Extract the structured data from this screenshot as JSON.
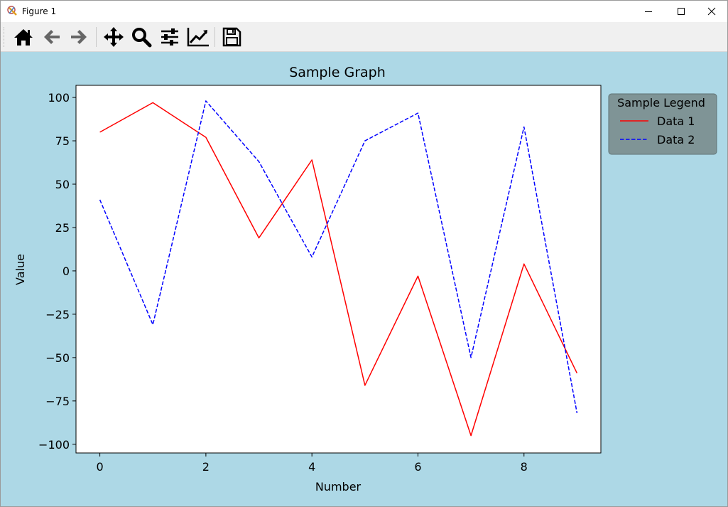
{
  "window": {
    "title": "Figure 1"
  },
  "toolbar": {
    "tools": [
      {
        "name": "home-icon",
        "label": "Home"
      },
      {
        "name": "back-icon",
        "label": "Back"
      },
      {
        "name": "forward-icon",
        "label": "Forward"
      },
      {
        "name": "pan-icon",
        "label": "Pan"
      },
      {
        "name": "zoom-icon",
        "label": "Zoom"
      },
      {
        "name": "subplots-icon",
        "label": "Subplots"
      },
      {
        "name": "edit-axis-icon",
        "label": "Customize"
      },
      {
        "name": "save-icon",
        "label": "Save"
      }
    ]
  },
  "colors": {
    "background": "#add8e6",
    "series1": "#ff0000",
    "series2": "#0000ff",
    "legend_bg": "#7f9496"
  },
  "chart_data": {
    "type": "line",
    "title": "Sample Graph",
    "xlabel": "Number",
    "ylabel": "Value",
    "xlim": [
      -0.45,
      9.45
    ],
    "ylim": [
      -105,
      107
    ],
    "xticks": [
      0,
      2,
      4,
      6,
      8
    ],
    "yticks": [
      -100,
      -75,
      -50,
      -25,
      0,
      25,
      50,
      75,
      100
    ],
    "ytick_labels": [
      "−100",
      "−75",
      "−50",
      "−25",
      "0",
      "25",
      "50",
      "75",
      "100"
    ],
    "x": [
      0,
      1,
      2,
      3,
      4,
      5,
      6,
      7,
      8,
      9
    ],
    "series": [
      {
        "name": "Data 1",
        "style": "solid",
        "color": "#ff0000",
        "values": [
          80,
          97,
          77,
          19,
          64,
          -66,
          -3,
          -95,
          4,
          -59
        ]
      },
      {
        "name": "Data 2",
        "style": "dashed",
        "color": "#0000ff",
        "values": [
          41,
          -31,
          98,
          63,
          8,
          75,
          91,
          -50,
          83,
          -82
        ]
      }
    ],
    "legend": {
      "title": "Sample Legend",
      "placement": "outside-right"
    },
    "grid": false
  }
}
